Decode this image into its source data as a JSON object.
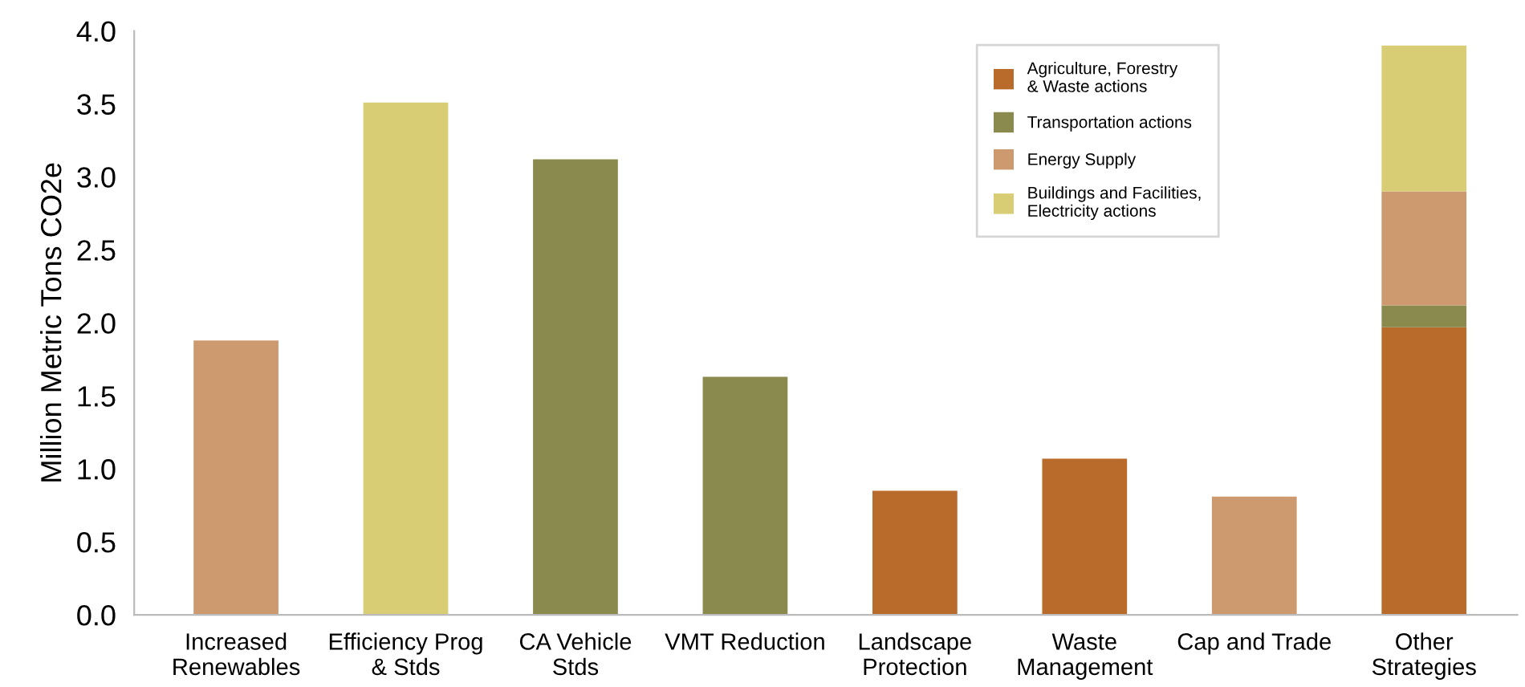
{
  "chart_data": {
    "type": "bar",
    "stacked": true,
    "ylabel": "Million Metric Tons CO2e",
    "categories": [
      "Increased\nRenewables",
      "Efficiency Prog\n& Stds",
      "CA Vehicle\nStds",
      "VMT Reduction",
      "Landscape\nProtection",
      "Waste\nManagement",
      "Cap and Trade",
      "Other\nStrategies"
    ],
    "series": [
      {
        "name": "Agriculture, Forestry\n& Waste actions",
        "color": "#b96b2b",
        "values": [
          null,
          null,
          null,
          null,
          0.85,
          1.07,
          null,
          1.97
        ]
      },
      {
        "name": "Transportation actions",
        "color": "#8a8a4f",
        "values": [
          null,
          null,
          3.12,
          1.63,
          null,
          null,
          null,
          0.15
        ]
      },
      {
        "name": "Energy Supply",
        "color": "#cd9a70",
        "values": [
          1.88,
          null,
          null,
          null,
          null,
          null,
          0.81,
          0.78
        ]
      },
      {
        "name": "Buildings and Facilities,\nElectricity actions",
        "color": "#d8cd74",
        "values": [
          null,
          3.51,
          null,
          null,
          null,
          null,
          null,
          1.0
        ]
      }
    ],
    "ylim": [
      0,
      4.0
    ],
    "yticks": [
      {
        "value": 0,
        "label": "0.0"
      },
      {
        "value": 0.5,
        "label": "0.5"
      },
      {
        "value": 1,
        "label": "1.0"
      },
      {
        "value": 1.5,
        "label": "1.5"
      },
      {
        "value": 2,
        "label": "2.0"
      },
      {
        "value": 2.5,
        "label": "2.5"
      },
      {
        "value": 3,
        "label": "3.0"
      },
      {
        "value": 3.5,
        "label": "3.5"
      },
      {
        "value": 4,
        "label": "4.0"
      }
    ],
    "grid": false,
    "legend": "top right"
  }
}
